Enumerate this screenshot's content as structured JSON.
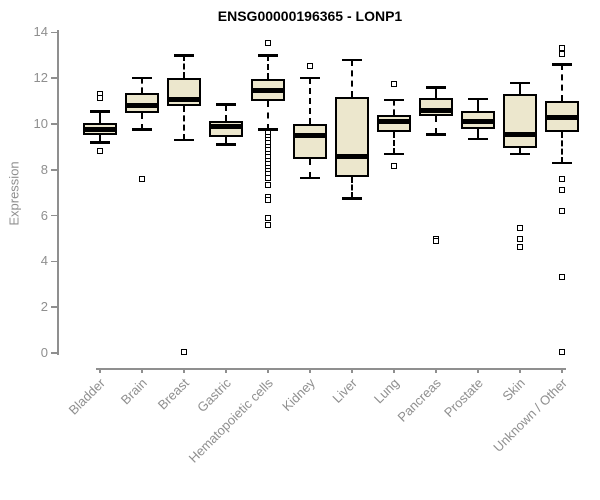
{
  "title": "ENSG00000196365 - LONP1",
  "chart_data": {
    "type": "boxplot",
    "title": "ENSG00000196365 - LONP1",
    "xlabel": "",
    "ylabel": "Expression",
    "ylim": [
      0,
      14
    ],
    "yticks": [
      0,
      2,
      4,
      6,
      8,
      10,
      12,
      14
    ],
    "grid": false,
    "legend": null,
    "categories": [
      "Bladder",
      "Brain",
      "Breast",
      "Gastric",
      "Hematopoietic cells",
      "Kidney",
      "Liver",
      "Lung",
      "Pancreas",
      "Prostate",
      "Skin",
      "Unknown / Other"
    ],
    "series": [
      {
        "name": "Bladder",
        "whisker_low": 9.2,
        "q1": 9.5,
        "median": 9.75,
        "q3": 10.05,
        "whisker_high": 10.55,
        "outliers": [
          11.3,
          11.15,
          8.8
        ]
      },
      {
        "name": "Brain",
        "whisker_low": 9.75,
        "q1": 10.5,
        "median": 10.8,
        "q3": 11.35,
        "whisker_high": 12.0,
        "outliers": [
          7.6
        ]
      },
      {
        "name": "Breast",
        "whisker_low": 9.3,
        "q1": 10.8,
        "median": 11.05,
        "q3": 12.0,
        "whisker_high": 13.0,
        "outliers": [
          0.05
        ]
      },
      {
        "name": "Gastric",
        "whisker_low": 9.1,
        "q1": 9.45,
        "median": 9.9,
        "q3": 10.15,
        "whisker_high": 10.85,
        "outliers": []
      },
      {
        "name": "Hematopoietic cells",
        "whisker_low": 9.75,
        "q1": 11.0,
        "median": 11.45,
        "q3": 11.95,
        "whisker_high": 13.0,
        "outliers": [
          13.55,
          9.6,
          9.45,
          9.3,
          9.15,
          9.0,
          8.85,
          8.7,
          8.55,
          8.4,
          8.25,
          8.1,
          7.95,
          7.8,
          7.65,
          7.35,
          6.8,
          6.7,
          5.9,
          5.6
        ]
      },
      {
        "name": "Kidney",
        "whisker_low": 7.65,
        "q1": 8.45,
        "median": 9.5,
        "q3": 10.0,
        "whisker_high": 12.0,
        "outliers": [
          12.55
        ]
      },
      {
        "name": "Liver",
        "whisker_low": 6.75,
        "q1": 7.7,
        "median": 8.6,
        "q3": 11.2,
        "whisker_high": 12.8,
        "outliers": []
      },
      {
        "name": "Lung",
        "whisker_low": 8.7,
        "q1": 9.65,
        "median": 10.1,
        "q3": 10.4,
        "whisker_high": 11.05,
        "outliers": [
          11.75,
          8.15
        ]
      },
      {
        "name": "Pancreas",
        "whisker_low": 9.55,
        "q1": 10.35,
        "median": 10.6,
        "q3": 11.15,
        "whisker_high": 11.6,
        "outliers": [
          5.0,
          4.9
        ]
      },
      {
        "name": "Prostate",
        "whisker_low": 9.35,
        "q1": 9.8,
        "median": 10.1,
        "q3": 10.55,
        "whisker_high": 11.1,
        "outliers": []
      },
      {
        "name": "Skin",
        "whisker_low": 8.7,
        "q1": 8.95,
        "median": 9.55,
        "q3": 11.3,
        "whisker_high": 11.8,
        "outliers": [
          5.45,
          5.0,
          4.65
        ]
      },
      {
        "name": "Unknown / Other",
        "whisker_low": 8.3,
        "q1": 9.65,
        "median": 10.3,
        "q3": 11.0,
        "whisker_high": 12.6,
        "outliers": [
          13.3,
          13.05,
          7.6,
          7.1,
          6.2,
          3.3,
          0.05
        ]
      }
    ],
    "colors": {
      "box_fill": "#ece7cd",
      "box_border": "#000000",
      "median": "#000000",
      "axis": "#8f8f8f",
      "title": "#000000"
    }
  }
}
